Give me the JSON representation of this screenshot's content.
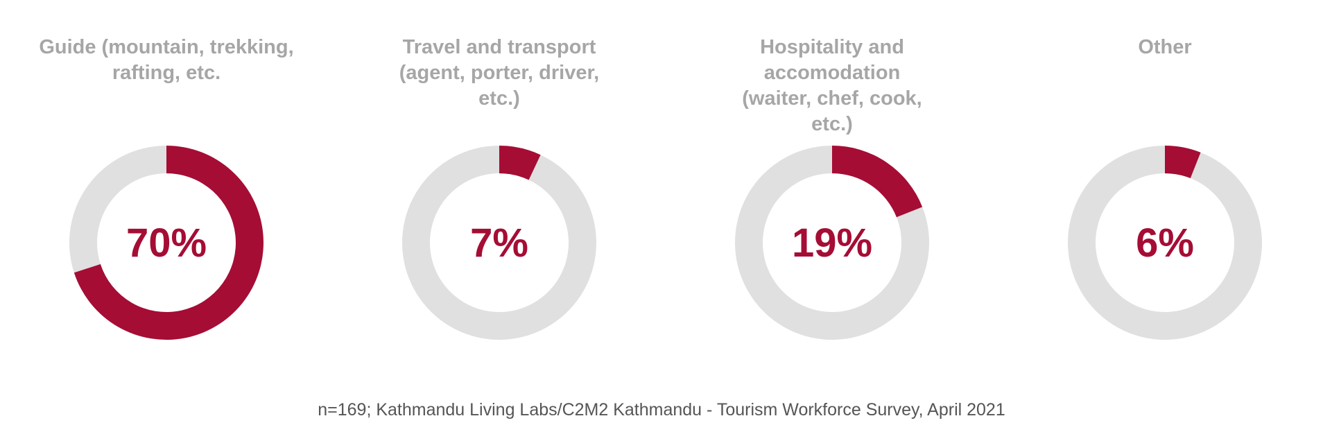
{
  "colors": {
    "highlight": "#a50d35",
    "track": "#e0e0e0",
    "title": "#a6a6a6",
    "note": "#555555"
  },
  "chart_data": [
    {
      "type": "pie",
      "title": "Guide (mountain, trekking, rafting, etc.)",
      "title_lines": [
        "Guide (mountain, trekking,",
        "rafting, etc."
      ],
      "value": 70,
      "value_label": "70%"
    },
    {
      "type": "pie",
      "title": "Travel and transport (agent, porter, driver, etc.)",
      "title_lines": [
        "Travel and transport",
        "(agent, porter, driver,",
        "etc.)"
      ],
      "value": 7,
      "value_label": "7%"
    },
    {
      "type": "pie",
      "title": "Hospitality and accomodation (waiter, chef, cook, etc.)",
      "title_lines": [
        "Hospitality and accomodation",
        "(waiter, chef, cook,",
        "etc.)"
      ],
      "value": 19,
      "value_label": "19%"
    },
    {
      "type": "pie",
      "title": "Other",
      "title_lines": [
        "Other"
      ],
      "value": 6,
      "value_label": "6%"
    }
  ],
  "source_note": "n=169; Kathmandu Living Labs/C2M2 Kathmandu - Tourism Workforce Survey, April 2021"
}
